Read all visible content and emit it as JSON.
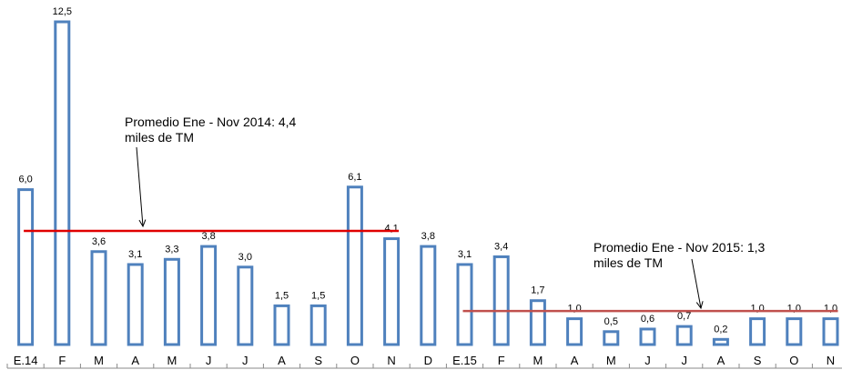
{
  "chart_data": {
    "type": "bar",
    "categories": [
      "E.14",
      "F",
      "M",
      "A",
      "M",
      "J",
      "J",
      "A",
      "S",
      "O",
      "N",
      "D",
      "E.15",
      "F",
      "M",
      "A",
      "M",
      "J",
      "J",
      "A",
      "S",
      "O",
      "N"
    ],
    "values": [
      6.0,
      12.5,
      3.6,
      3.1,
      3.3,
      3.8,
      3.0,
      1.5,
      1.5,
      6.1,
      4.1,
      3.8,
      3.1,
      3.4,
      1.7,
      1.0,
      0.5,
      0.6,
      0.7,
      0.2,
      1.0,
      1.0,
      1.0
    ],
    "value_labels": [
      "6,0",
      "12,5",
      "3,6",
      "3,1",
      "3,3",
      "3,8",
      "3,0",
      "1,5",
      "1,5",
      "6,1",
      "4,1",
      "3,8",
      "3,1",
      "3,4",
      "1,7",
      "1,0",
      "0,5",
      "0,6",
      "0,7",
      "0,2",
      "1,0",
      "1,0",
      "1,0"
    ],
    "color": "#4f81bd",
    "reference_lines": [
      {
        "value": 4.4,
        "color": "#e00000",
        "label": [
          "Promedio Ene - Nov 2014: 4,4",
          "miles de TM"
        ]
      },
      {
        "value": 1.3,
        "color": "#c0504d",
        "label": [
          "Promedio  Ene - Nov 2015: 1,3",
          "miles de TM"
        ]
      }
    ]
  }
}
